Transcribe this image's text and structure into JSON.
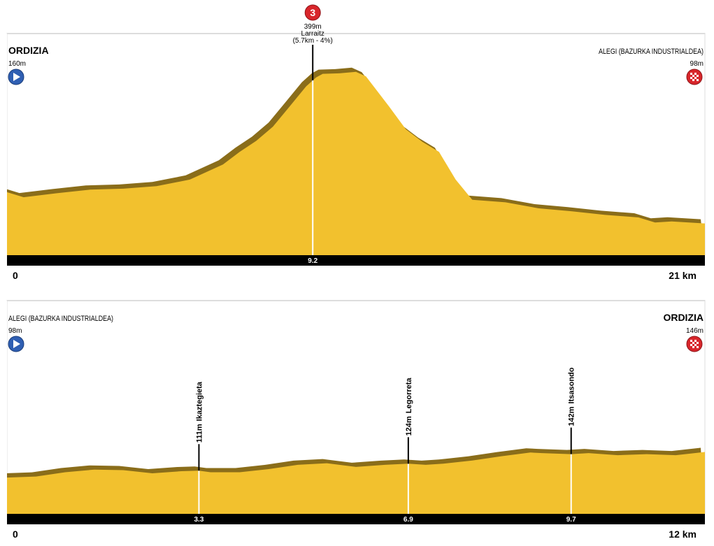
{
  "chart_data": [
    {
      "type": "area",
      "start": {
        "name": "ORDIZIA",
        "elevation": "160m"
      },
      "finish": {
        "name": "ALEGI (BAZURKA INDUSTRIALDEA)",
        "elevation": "98m"
      },
      "x": [
        0,
        0.5,
        1.5,
        2.5,
        3.5,
        4.5,
        5.5,
        6.5,
        7,
        7.5,
        8,
        8.5,
        9,
        9.3,
        9.5,
        10,
        10.5,
        10.8,
        11.5,
        12,
        12.5,
        13,
        13.5,
        14,
        15,
        16,
        17,
        18,
        19,
        19.5,
        20,
        21
      ],
      "values": [
        160,
        150,
        158,
        165,
        167,
        172,
        185,
        215,
        240,
        262,
        290,
        330,
        370,
        388,
        395,
        396,
        399,
        390,
        330,
        285,
        260,
        240,
        185,
        145,
        140,
        128,
        122,
        115,
        110,
        100,
        102,
        98
      ],
      "xlim": [
        0,
        21
      ],
      "ylim": [
        35,
        475
      ],
      "xticks": [
        {
          "value": 0,
          "label": "0"
        },
        {
          "value": 21,
          "label": "21 km"
        }
      ],
      "color": "#f2c12e",
      "shadow_color": "#8a6d1a",
      "climbs": [
        {
          "category": "3",
          "elevation": "399m",
          "name": "Larraitz",
          "detail": "(5.7km - 4%)",
          "km": 9.2
        }
      ]
    },
    {
      "type": "area",
      "start": {
        "name": "ALEGI (BAZURKA INDUSTRIALDEA)",
        "elevation": "98m"
      },
      "finish": {
        "name": "ORDIZIA",
        "elevation": "146m"
      },
      "x": [
        0,
        0.5,
        1,
        1.5,
        2,
        2.5,
        3,
        3.3,
        3.5,
        4,
        4.5,
        5,
        5.5,
        6,
        6.5,
        6.9,
        7.2,
        7.5,
        8,
        8.5,
        9,
        9.2,
        9.7,
        10,
        10.5,
        11,
        11.5,
        12
      ],
      "values": [
        98,
        100,
        108,
        113,
        112,
        106,
        110,
        111,
        108,
        108,
        114,
        122,
        125,
        118,
        122,
        124,
        122,
        124,
        130,
        138,
        145,
        144,
        142,
        144,
        140,
        142,
        140,
        146
      ],
      "xlim": [
        0,
        12
      ],
      "ylim": [
        30,
        430
      ],
      "xticks": [
        {
          "value": 0,
          "label": "0"
        },
        {
          "value": 12,
          "label": "12 km"
        }
      ],
      "color": "#f2c12e",
      "shadow_color": "#8a6d1a",
      "climbs": [
        {
          "elevation": "111m",
          "name": "Ikaztegieta",
          "km": 3.3
        },
        {
          "elevation": "124m",
          "name": "Legorreta",
          "km": 6.9
        },
        {
          "elevation": "142m",
          "name": "Itsasondo",
          "km": 9.7
        }
      ]
    }
  ]
}
